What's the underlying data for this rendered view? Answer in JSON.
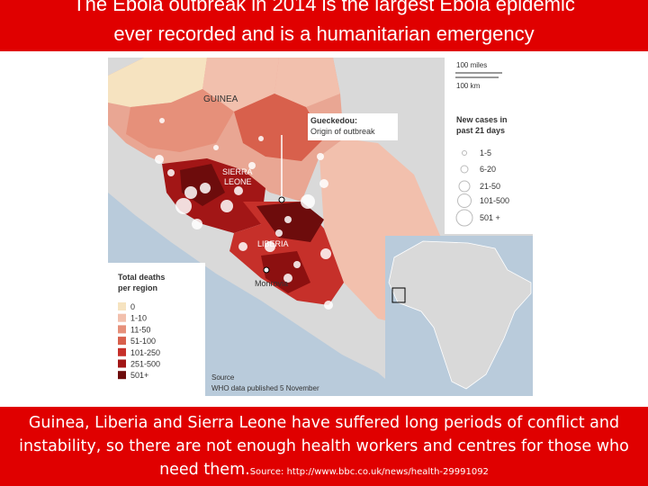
{
  "header": {
    "line1": "The Ebola outbreak in 2014 is the largest Ebola epidemic",
    "line2": "ever recorded and is a humanitarian emergency"
  },
  "map": {
    "country_labels": {
      "guinea": "GUINEA",
      "sierra_leone_1": "SIERRA",
      "sierra_leone_2": "LEONE",
      "liberia": "LIBERIA"
    },
    "city_label": "Monrovia",
    "callout": {
      "line1": "Gueckedou:",
      "line2": "Origin of outbreak"
    },
    "scale": {
      "miles": "100 miles",
      "km": "100 km"
    },
    "new_cases_legend": {
      "title_line1": "New cases in",
      "title_line2": "past 21 days",
      "items": [
        "1-5",
        "6-20",
        "21-50",
        "101-500",
        "501 +"
      ]
    },
    "deaths_legend": {
      "title_line1": "Total deaths",
      "title_line2": "per region",
      "items": [
        {
          "label": "0",
          "color": "#f6e3c0"
        },
        {
          "label": "1-10",
          "color": "#f2c0ad"
        },
        {
          "label": "11-50",
          "color": "#e6907a"
        },
        {
          "label": "51-100",
          "color": "#d8604c"
        },
        {
          "label": "101-250",
          "color": "#c6302a"
        },
        {
          "label": "251-500",
          "color": "#a21616"
        },
        {
          "label": "501+",
          "color": "#6d0c0c"
        }
      ]
    },
    "source": {
      "line1": "Source",
      "line2": "WHO data published 5 November"
    }
  },
  "footer": {
    "line1": "Guinea, Liberia and Sierra Leone have suffered long periods of conflict and",
    "line2": "instability, so there are not enough health workers and centres for those who",
    "line3": "need them.",
    "source": "Source: http://www.bbc.co.uk/news/health-29991092"
  },
  "colors": {
    "banner": "#e00000",
    "sea": "#b9cbdb",
    "land": "#d9d9d9"
  }
}
